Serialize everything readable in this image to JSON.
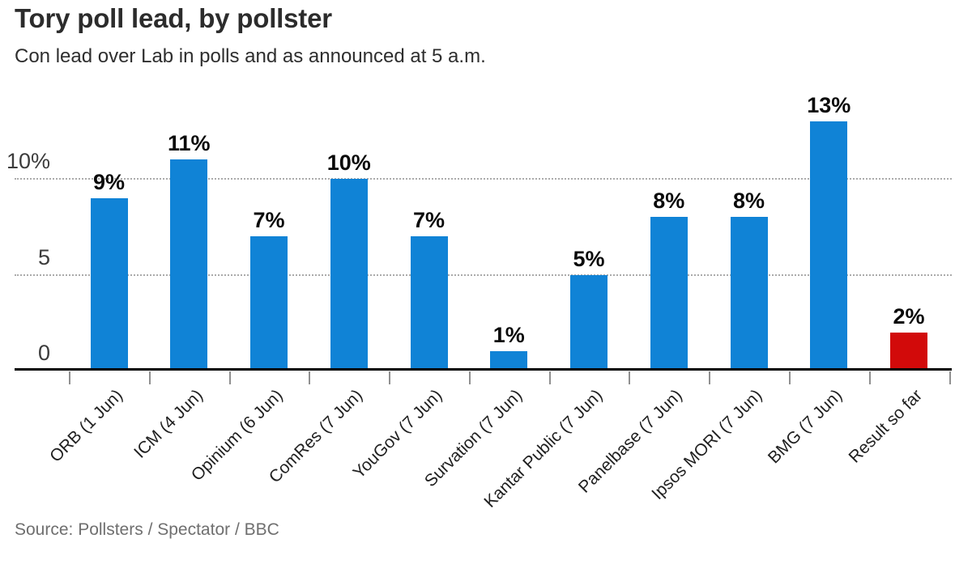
{
  "header": {
    "title": "Tory poll lead, by pollster",
    "subtitle": "Con lead over Lab in polls and as announced at 5 a.m."
  },
  "footer": {
    "source": "Source: Pollsters / Spectator / BBC"
  },
  "colors": {
    "bar_blue": "#1083d6",
    "bar_red": "#d20a0a",
    "axis": "#000000",
    "tick": "#909090",
    "gridline": "#ababab",
    "title_text": "#2c2c2c",
    "value_label_text": "#0a0a0a",
    "source_text": "#6f6f6f",
    "background": "#ffffff"
  },
  "chart_data": {
    "type": "bar",
    "title": "Tory poll lead, by pollster",
    "subtitle": "Con lead over Lab in polls and as announced at 5 a.m.",
    "categories": [
      "ORB (1 Jun)",
      "ICM (4 Jun)",
      "Opinium (6 Jun)",
      "ComRes (7 Jun)",
      "YouGov (7 Jun)",
      "Survation (7 Jun)",
      "Kantar Public (7 Jun)",
      "Panelbase (7 Jun)",
      "Ipsos MORI (7 Jun)",
      "BMG (7 Jun)",
      "Result so far"
    ],
    "values": [
      9,
      11,
      7,
      10,
      7,
      1,
      5,
      8,
      8,
      13,
      2
    ],
    "value_labels": [
      "9%",
      "11%",
      "7%",
      "10%",
      "7%",
      "1%",
      "5%",
      "8%",
      "8%",
      "13%",
      "2%"
    ],
    "bar_colors": [
      "#1083d6",
      "#1083d6",
      "#1083d6",
      "#1083d6",
      "#1083d6",
      "#1083d6",
      "#1083d6",
      "#1083d6",
      "#1083d6",
      "#1083d6",
      "#d20a0a"
    ],
    "xlabel": "",
    "ylabel": "",
    "ylim": [
      0,
      13.5
    ],
    "yticks": [
      {
        "v": 0,
        "label": "0"
      },
      {
        "v": 5,
        "label": "5"
      },
      {
        "v": 10,
        "label": "10%"
      }
    ],
    "gridlines_at": [
      5,
      10
    ],
    "grid_style": "dotted-horizontal",
    "x_label_rotation_deg": -45,
    "legend": null
  }
}
